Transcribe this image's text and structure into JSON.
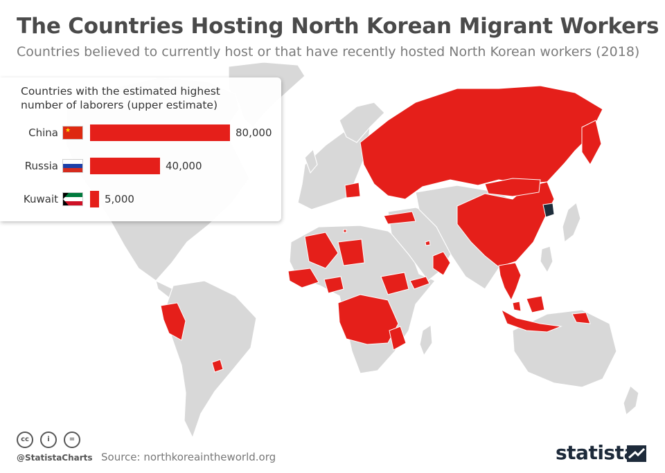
{
  "header": {
    "title": "The Countries Hosting North Korean Migrant Workers",
    "subtitle": "Countries believed to currently host or that have recently hosted North Korean workers (2018)"
  },
  "colors": {
    "host": "#e51f1a",
    "north_korea": "#1e2d3b",
    "other_land": "#d8d8d8",
    "brand": "#1d2a3a"
  },
  "chart_data": {
    "type": "bar",
    "orientation": "horizontal",
    "title": "Countries with the estimated highest number of laborers (upper estimate)",
    "categories": [
      "China",
      "Russia",
      "Kuwait"
    ],
    "values": [
      80000,
      40000,
      5000
    ],
    "value_labels": [
      "80,000",
      "40,000",
      "5,000"
    ],
    "xlim": [
      0,
      80000
    ],
    "grid": false,
    "bar_color": "#e51f1a"
  },
  "map": {
    "host_countries": [
      "Russia",
      "China",
      "Mongolia",
      "Poland",
      "Malta",
      "Turkey",
      "Kuwait",
      "Qatar",
      "UAE",
      "Oman",
      "Yemen",
      "Myanmar",
      "Laos",
      "Thailand",
      "Cambodia",
      "Vietnam",
      "Malaysia",
      "Indonesia",
      "Papua New Guinea",
      "Algeria",
      "Libya",
      "Senegal",
      "Guinea",
      "Nigeria",
      "Ethiopia",
      "Equatorial Guinea",
      "Angola",
      "DR Congo",
      "Congo",
      "Uganda",
      "Tanzania",
      "Mozambique",
      "Zambia",
      "Peru",
      "Uruguay"
    ],
    "north_korea_label": "North Korea"
  },
  "footer": {
    "license_icons": [
      "cc-icon",
      "by-icon",
      "nd-icon"
    ],
    "license_glyphs": [
      "cc",
      "i",
      "="
    ],
    "handle": "@StatistaCharts",
    "source": "Source: northkoreaintheworld.org",
    "brand": "statista"
  }
}
